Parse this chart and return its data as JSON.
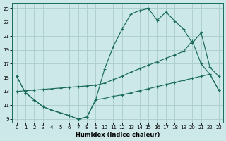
{
  "xlabel": "Humidex (Indice chaleur)",
  "bg_color": "#cce8e8",
  "grid_color": "#aacccc",
  "line_color": "#1a6b5a",
  "xlim_min": -0.5,
  "xlim_max": 23.5,
  "ylim_min": 8.5,
  "ylim_max": 25.8,
  "xticks": [
    0,
    1,
    2,
    3,
    4,
    5,
    6,
    7,
    8,
    9,
    10,
    11,
    12,
    13,
    14,
    15,
    16,
    17,
    18,
    19,
    20,
    21,
    22,
    23
  ],
  "yticks": [
    9,
    11,
    13,
    15,
    17,
    19,
    21,
    23,
    25
  ],
  "line_bottom_x": [
    0,
    1,
    2,
    3,
    4,
    5,
    6,
    7,
    8,
    9,
    10,
    11,
    12,
    13,
    14,
    15,
    16,
    17,
    18,
    19,
    20,
    21,
    22,
    23
  ],
  "line_bottom_y": [
    15.2,
    12.8,
    11.8,
    10.8,
    10.3,
    9.9,
    9.5,
    9.0,
    9.3,
    11.8,
    12.0,
    12.3,
    12.5,
    12.8,
    13.1,
    13.4,
    13.7,
    14.0,
    14.3,
    14.6,
    14.9,
    15.2,
    15.5,
    13.2
  ],
  "line_top_x": [
    0,
    1,
    2,
    3,
    4,
    5,
    6,
    7,
    8,
    9,
    10,
    11,
    12,
    13,
    14,
    15,
    16,
    17,
    18,
    19,
    20,
    21,
    22,
    23
  ],
  "line_top_y": [
    15.2,
    12.8,
    11.8,
    10.8,
    10.3,
    9.9,
    9.5,
    9.0,
    9.3,
    11.8,
    16.2,
    19.5,
    22.0,
    24.2,
    24.7,
    25.0,
    23.3,
    24.5,
    23.2,
    22.0,
    20.0,
    21.5,
    16.5,
    15.2
  ],
  "line_mid_x": [
    0,
    1,
    2,
    3,
    4,
    5,
    6,
    7,
    8,
    9,
    10,
    11,
    12,
    13,
    14,
    15,
    16,
    17,
    18,
    19,
    20,
    21,
    22,
    23
  ],
  "line_mid_y": [
    13.0,
    13.1,
    13.2,
    13.3,
    13.4,
    13.5,
    13.6,
    13.7,
    13.8,
    13.9,
    14.2,
    14.7,
    15.2,
    15.8,
    16.3,
    16.8,
    17.3,
    17.8,
    18.3,
    18.8,
    20.3,
    17.0,
    15.5,
    13.2
  ]
}
